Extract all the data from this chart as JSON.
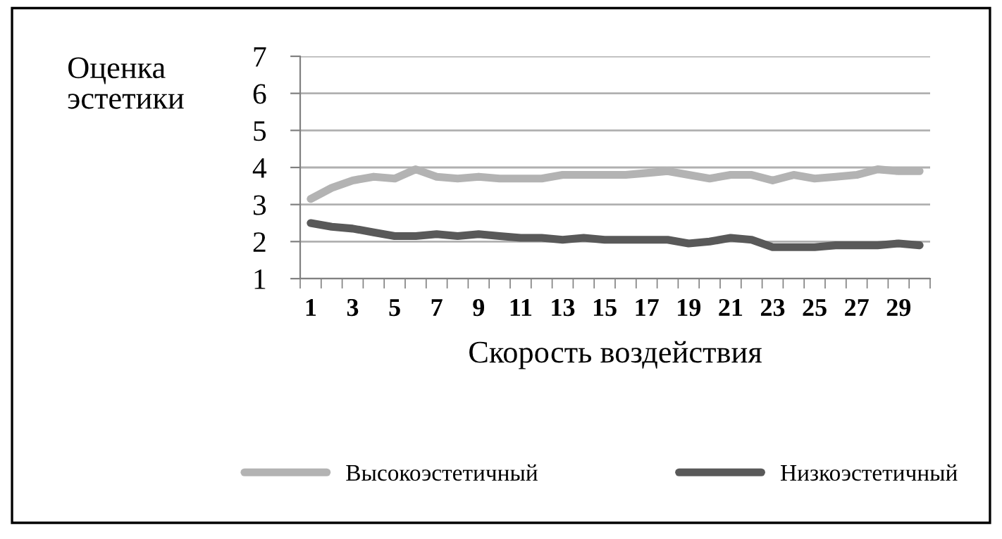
{
  "chart_data": {
    "type": "line",
    "xlabel": "Скорость воздействия",
    "ylabel": "Оценка\nэстетики",
    "categories": [
      "1",
      null,
      "3",
      null,
      "5",
      null,
      "7",
      null,
      "9",
      null,
      "11",
      null,
      "13",
      null,
      "15",
      null,
      "17",
      null,
      "19",
      null,
      "21",
      null,
      "23",
      null,
      "25",
      null,
      "27",
      null,
      "29",
      null
    ],
    "series": [
      {
        "name": "Высокоэстетичный",
        "color": "#b3b3b3",
        "values": [
          3.15,
          3.45,
          3.65,
          3.75,
          3.7,
          3.95,
          3.75,
          3.7,
          3.75,
          3.7,
          3.7,
          3.7,
          3.8,
          3.8,
          3.8,
          3.8,
          3.85,
          3.9,
          3.8,
          3.7,
          3.8,
          3.8,
          3.65,
          3.8,
          3.7,
          3.75,
          3.8,
          3.95,
          3.9,
          3.9
        ]
      },
      {
        "name": "Низкоэстетичный",
        "color": "#595959",
        "values": [
          2.5,
          2.4,
          2.35,
          2.25,
          2.15,
          2.15,
          2.2,
          2.15,
          2.2,
          2.15,
          2.1,
          2.1,
          2.05,
          2.1,
          2.05,
          2.05,
          2.05,
          2.05,
          1.95,
          2.0,
          2.1,
          2.05,
          1.85,
          1.85,
          1.85,
          1.9,
          1.9,
          1.9,
          1.95,
          1.9
        ]
      }
    ],
    "ylim": [
      1,
      7
    ],
    "yticks": [
      1,
      2,
      3,
      4,
      5,
      6,
      7
    ],
    "grid": "y",
    "legend": "bottom",
    "marker": "none",
    "line_style": "solid"
  }
}
